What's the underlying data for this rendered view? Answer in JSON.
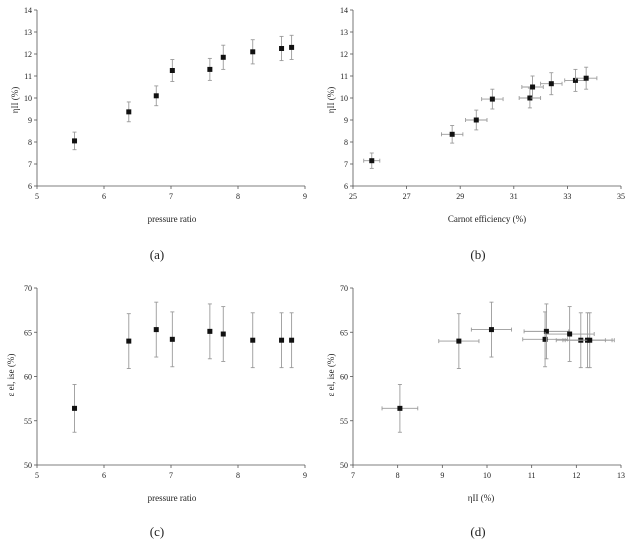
{
  "panels": [
    {
      "label": "(a)",
      "xlabel": "pressure ratio",
      "ylabel": "ηII (%)",
      "xlim": [
        5,
        9
      ],
      "ylim": [
        6,
        14
      ],
      "xticks": [
        "5",
        "6",
        "7",
        "8",
        "9"
      ],
      "yticks": [
        "6",
        "7",
        "8",
        "9",
        "10",
        "11",
        "12",
        "13",
        "14"
      ]
    },
    {
      "label": "(b)",
      "xlabel": "Carnot efficiency (%)",
      "ylabel": "ηII (%)",
      "xlim": [
        25,
        35
      ],
      "ylim": [
        6,
        14
      ],
      "xticks": [
        "25",
        "27",
        "29",
        "31",
        "33",
        "35"
      ],
      "yticks": [
        "6",
        "7",
        "8",
        "9",
        "10",
        "11",
        "12",
        "13",
        "14"
      ]
    },
    {
      "label": "(c)",
      "xlabel": "pressure ratio",
      "ylabel": "ε el, ise (%)",
      "xlim": [
        5,
        9
      ],
      "ylim": [
        50,
        70
      ],
      "xticks": [
        "5",
        "6",
        "7",
        "8",
        "9"
      ],
      "yticks": [
        "50",
        "55",
        "60",
        "65",
        "70"
      ]
    },
    {
      "label": "(d)",
      "xlabel": "ηII (%)",
      "ylabel": "ε el, ise (%)",
      "xlim": [
        7,
        13
      ],
      "ylim": [
        50,
        70
      ],
      "xticks": [
        "7",
        "8",
        "9",
        "10",
        "11",
        "12",
        "13"
      ],
      "yticks": [
        "50",
        "55",
        "60",
        "65",
        "70"
      ]
    }
  ],
  "chart_data": [
    {
      "type": "scatter",
      "panel": "(a)",
      "xlabel": "pressure ratio",
      "ylabel": "ηII (%)",
      "xlim": [
        5,
        9
      ],
      "ylim": [
        6,
        14
      ],
      "grid": false,
      "points": [
        {
          "x": 5.56,
          "y": 8.05,
          "yerr": 0.4
        },
        {
          "x": 6.37,
          "y": 9.37,
          "yerr": 0.45
        },
        {
          "x": 6.78,
          "y": 10.1,
          "yerr": 0.45
        },
        {
          "x": 7.02,
          "y": 11.25,
          "yerr": 0.5
        },
        {
          "x": 7.58,
          "y": 11.3,
          "yerr": 0.5
        },
        {
          "x": 7.78,
          "y": 11.85,
          "yerr": 0.55
        },
        {
          "x": 8.22,
          "y": 12.1,
          "yerr": 0.55
        },
        {
          "x": 8.65,
          "y": 12.25,
          "yerr": 0.55
        },
        {
          "x": 8.8,
          "y": 12.3,
          "yerr": 0.55
        }
      ]
    },
    {
      "type": "scatter",
      "panel": "(b)",
      "xlabel": "Carnot efficiency (%)",
      "ylabel": "ηII (%)",
      "xlim": [
        25,
        35
      ],
      "ylim": [
        6,
        14
      ],
      "grid": false,
      "points": [
        {
          "x": 25.7,
          "y": 7.15,
          "xerr": 0.3,
          "yerr": 0.35
        },
        {
          "x": 28.7,
          "y": 8.35,
          "xerr": 0.4,
          "yerr": 0.4
        },
        {
          "x": 29.6,
          "y": 9.0,
          "xerr": 0.4,
          "yerr": 0.45
        },
        {
          "x": 30.2,
          "y": 9.95,
          "xerr": 0.4,
          "yerr": 0.45
        },
        {
          "x": 31.6,
          "y": 10.0,
          "xerr": 0.4,
          "yerr": 0.45
        },
        {
          "x": 31.7,
          "y": 10.5,
          "xerr": 0.4,
          "yerr": 0.5
        },
        {
          "x": 32.4,
          "y": 10.65,
          "xerr": 0.4,
          "yerr": 0.5
        },
        {
          "x": 33.3,
          "y": 10.8,
          "xerr": 0.4,
          "yerr": 0.5
        },
        {
          "x": 33.7,
          "y": 10.9,
          "xerr": 0.4,
          "yerr": 0.5
        }
      ]
    },
    {
      "type": "scatter",
      "panel": "(c)",
      "xlabel": "pressure ratio",
      "ylabel": "ε el, ise (%)",
      "xlim": [
        5,
        9
      ],
      "ylim": [
        50,
        70
      ],
      "grid": false,
      "points": [
        {
          "x": 5.56,
          "y": 56.4,
          "yerr": 2.7
        },
        {
          "x": 6.37,
          "y": 64.0,
          "yerr": 3.1
        },
        {
          "x": 6.78,
          "y": 65.3,
          "yerr": 3.1
        },
        {
          "x": 7.02,
          "y": 64.2,
          "yerr": 3.1
        },
        {
          "x": 7.58,
          "y": 65.1,
          "yerr": 3.1
        },
        {
          "x": 7.78,
          "y": 64.8,
          "yerr": 3.1
        },
        {
          "x": 8.22,
          "y": 64.1,
          "yerr": 3.1
        },
        {
          "x": 8.65,
          "y": 64.1,
          "yerr": 3.1
        },
        {
          "x": 8.8,
          "y": 64.1,
          "yerr": 3.1
        }
      ]
    },
    {
      "type": "scatter",
      "panel": "(d)",
      "xlabel": "ηII (%)",
      "ylabel": "ε el, ise (%)",
      "xlim": [
        7,
        13
      ],
      "ylim": [
        50,
        70
      ],
      "grid": false,
      "points": [
        {
          "x": 8.05,
          "y": 56.4,
          "xerr": 0.4,
          "yerr": 2.7
        },
        {
          "x": 9.37,
          "y": 64.0,
          "xerr": 0.45,
          "yerr": 3.1
        },
        {
          "x": 10.1,
          "y": 65.3,
          "xerr": 0.45,
          "yerr": 3.1
        },
        {
          "x": 11.3,
          "y": 64.2,
          "xerr": 0.5,
          "yerr": 3.1
        },
        {
          "x": 11.33,
          "y": 65.1,
          "xerr": 0.5,
          "yerr": 3.1
        },
        {
          "x": 11.85,
          "y": 64.8,
          "xerr": 0.55,
          "yerr": 3.1
        },
        {
          "x": 12.1,
          "y": 64.1,
          "xerr": 0.55,
          "yerr": 3.1
        },
        {
          "x": 12.25,
          "y": 64.1,
          "xerr": 0.55,
          "yerr": 3.1
        },
        {
          "x": 12.3,
          "y": 64.1,
          "xerr": 0.55,
          "yerr": 3.1
        }
      ]
    }
  ]
}
